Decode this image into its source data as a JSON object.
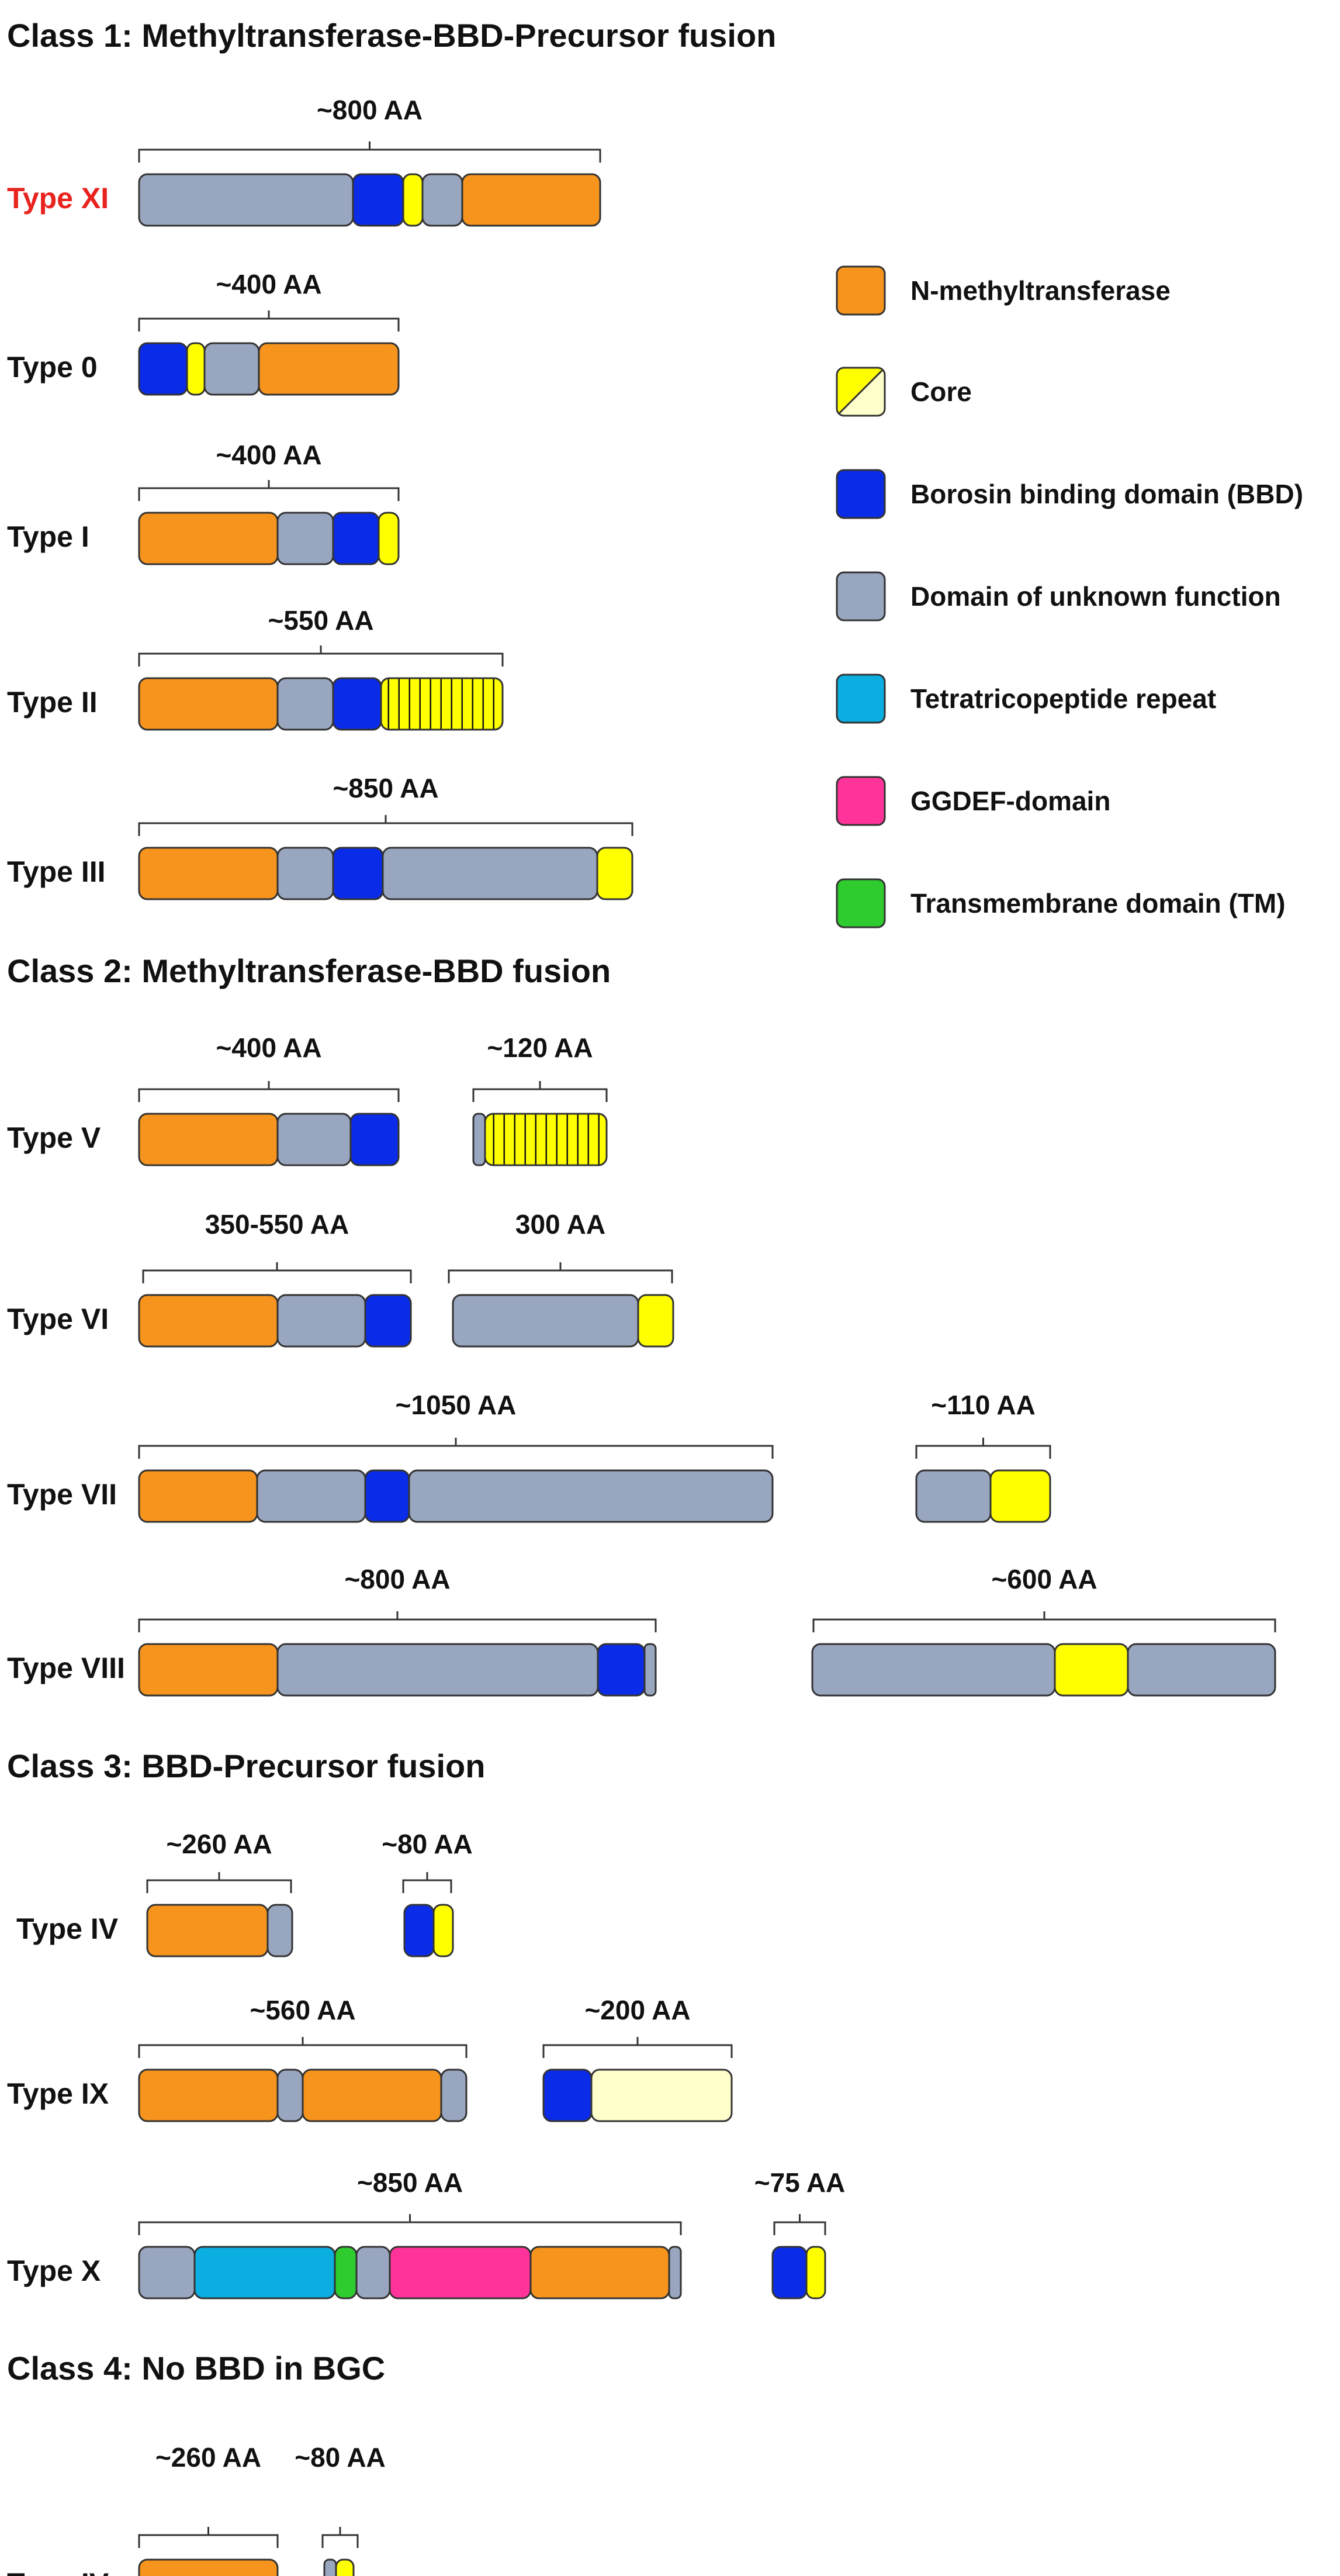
{
  "colors": {
    "N-methyltransferase": "#F7941D",
    "Core": "#FFFF00",
    "Core-alt": "#FFFFCC",
    "BBD": "#0A2CE8",
    "DUF": "#99A6BF",
    "TPR": "#0AAEE0",
    "GGDEF": "#FF3399",
    "TM": "#2ECC2E",
    "highlight": "#E8231E",
    "outline": "#333333"
  },
  "headings": [
    "Class 1: Methyltransferase-BBD-Precursor fusion",
    "Class 2: Methyltransferase-BBD fusion",
    "Class 3: BBD-Precursor fusion",
    "Class 4: No BBD in BGC"
  ],
  "legend": [
    {
      "key": "mt",
      "label": "N-methyltransferase",
      "icon": "orange-swatch"
    },
    {
      "key": "core",
      "label": "Core",
      "icon": "split-yellow-swatch"
    },
    {
      "key": "bbd",
      "label": "Borosin  binding domain (BBD)",
      "icon": "blue-swatch"
    },
    {
      "key": "duf",
      "label": "Domain of unknown function",
      "icon": "grey-swatch"
    },
    {
      "key": "tpr",
      "label": "Tetratricopeptide repeat",
      "icon": "cyan-swatch"
    },
    {
      "key": "ggdef",
      "label": "GGDEF-domain",
      "icon": "pink-swatch"
    },
    {
      "key": "tm",
      "label": "Transmembrane domain (TM)",
      "icon": "green-swatch"
    }
  ],
  "rows": [
    {
      "type": "Type XI",
      "highlight": true,
      "proteins": [
        {
          "length": "~800 AA",
          "domains": [
            "duf",
            "bbd",
            "core",
            "duf",
            "mt"
          ]
        }
      ]
    },
    {
      "type": "Type 0",
      "proteins": [
        {
          "length": "~400 AA",
          "domains": [
            "bbd",
            "core",
            "duf",
            "mt"
          ]
        }
      ]
    },
    {
      "type": "Type I",
      "proteins": [
        {
          "length": "~400 AA",
          "domains": [
            "mt",
            "duf",
            "bbd",
            "core"
          ]
        }
      ]
    },
    {
      "type": "Type II",
      "proteins": [
        {
          "length": "~550 AA",
          "domains": [
            "mt",
            "duf",
            "bbd",
            "core-repeats"
          ]
        }
      ]
    },
    {
      "type": "Type III",
      "proteins": [
        {
          "length": "~850 AA",
          "domains": [
            "mt",
            "duf",
            "bbd",
            "duf",
            "core"
          ]
        }
      ]
    },
    {
      "type": "Type V",
      "proteins": [
        {
          "length": "~400 AA",
          "domains": [
            "mt",
            "duf",
            "bbd"
          ]
        },
        {
          "length": "~120 AA",
          "domains": [
            "duf",
            "core-repeats"
          ]
        }
      ]
    },
    {
      "type": "Type VI",
      "proteins": [
        {
          "length": "350-550  AA",
          "domains": [
            "mt",
            "duf",
            "bbd"
          ]
        },
        {
          "length": "300 AA",
          "domains": [
            "duf",
            "core"
          ]
        }
      ]
    },
    {
      "type": "Type VII",
      "proteins": [
        {
          "length": "~1050 AA",
          "domains": [
            "mt",
            "duf",
            "bbd",
            "duf"
          ]
        },
        {
          "length": "~110 AA",
          "domains": [
            "duf",
            "core"
          ]
        }
      ]
    },
    {
      "type": "Type VIII",
      "proteins": [
        {
          "length": "~800 AA",
          "domains": [
            "mt",
            "duf",
            "bbd",
            "duf"
          ]
        },
        {
          "length": "~600 AA",
          "domains": [
            "duf",
            "core",
            "duf"
          ]
        }
      ]
    },
    {
      "type": "Type IV",
      "proteins": [
        {
          "length": "~260 AA",
          "domains": [
            "mt",
            "duf"
          ]
        },
        {
          "length": "~80 AA",
          "domains": [
            "bbd",
            "core"
          ]
        }
      ]
    },
    {
      "type": "Type IX",
      "proteins": [
        {
          "length": "~560 AA",
          "domains": [
            "mt",
            "duf",
            "mt",
            "duf"
          ]
        },
        {
          "length": "~200 AA",
          "domains": [
            "bbd",
            "core-pale"
          ]
        }
      ]
    },
    {
      "type": "Type X",
      "proteins": [
        {
          "length": "~850 AA",
          "domains": [
            "duf",
            "tpr",
            "tm",
            "duf",
            "ggdef",
            "mt",
            "duf"
          ]
        },
        {
          "length": "~75 AA",
          "domains": [
            "bbd",
            "core"
          ]
        }
      ]
    },
    {
      "type": "Type IV",
      "proteins": [
        {
          "length": "~260 AA",
          "domains": [
            "mt"
          ]
        },
        {
          "length": "~80 AA",
          "domains": [
            "duf",
            "core"
          ]
        }
      ]
    }
  ]
}
